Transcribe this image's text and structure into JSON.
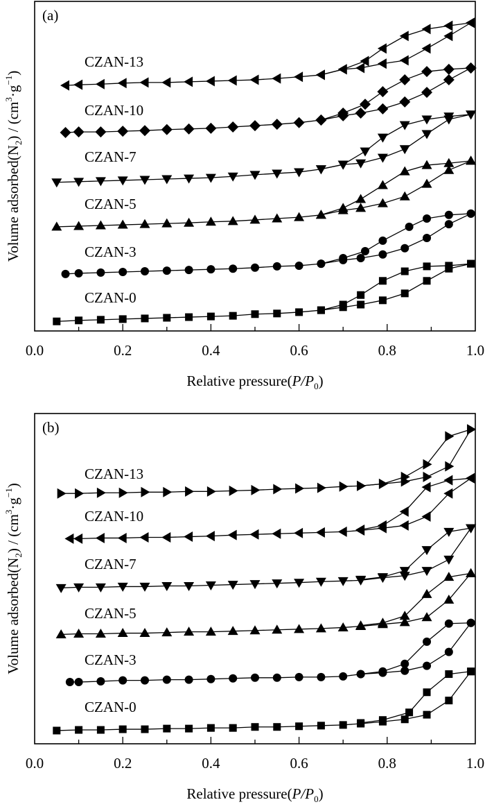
{
  "chart_data": [
    {
      "type": "line",
      "title": "(a)",
      "xlabel": "Relative pressure(P/P0)",
      "xlabel_parts": {
        "prefix": "Relative pressure(",
        "italic": "P/P",
        "sub": "0",
        "suffix": ")"
      },
      "ylabel": "Volume adsorbed(N2) / (cm3·g−1)",
      "ylabel_parts": {
        "a": "Volume adsorbed(N",
        "sub": "2",
        "b": ") / (cm",
        "sup1": "3",
        "c": "·g",
        "sup2": "−1",
        "d": ")"
      },
      "xlim": [
        0,
        1.0
      ],
      "ylim": [
        0,
        100
      ],
      "x_ticks": [
        "0.0",
        "0.2",
        "0.4",
        "0.6",
        "0.8",
        "1.0"
      ],
      "grid": false,
      "y_ticks_shown": false,
      "series": [
        {
          "name": "CZAN-0",
          "marker": "square",
          "adsorption": {
            "x": [
              0.05,
              0.1,
              0.15,
              0.2,
              0.25,
              0.3,
              0.35,
              0.4,
              0.45,
              0.5,
              0.55,
              0.6,
              0.65,
              0.7,
              0.74,
              0.79,
              0.84,
              0.89,
              0.94,
              0.99
            ],
            "y": [
              2.9,
              3.2,
              3.4,
              3.6,
              3.8,
              4.0,
              4.2,
              4.4,
              4.6,
              5.1,
              5.3,
              5.7,
              6.3,
              7.2,
              8.0,
              9.3,
              11.4,
              15.2,
              18.9,
              20.4
            ]
          },
          "desorption": {
            "x": [
              0.99,
              0.94,
              0.89,
              0.84,
              0.79,
              0.74,
              0.7,
              0.65
            ],
            "y": [
              20.4,
              19.8,
              19.6,
              18.1,
              15.2,
              10.9,
              8.0,
              6.3
            ]
          }
        },
        {
          "name": "CZAN-3",
          "marker": "circle",
          "adsorption": {
            "x": [
              0.07,
              0.1,
              0.15,
              0.2,
              0.25,
              0.3,
              0.35,
              0.4,
              0.45,
              0.5,
              0.55,
              0.6,
              0.65,
              0.7,
              0.74,
              0.79,
              0.84,
              0.89,
              0.94,
              0.99
            ],
            "y": [
              17.3,
              17.5,
              17.7,
              17.9,
              18.1,
              18.3,
              18.5,
              18.7,
              18.9,
              19.2,
              19.6,
              19.8,
              20.4,
              21.5,
              22.1,
              23.2,
              25.1,
              28.2,
              32.4,
              35.6
            ]
          },
          "desorption": {
            "x": [
              0.99,
              0.94,
              0.89,
              0.85,
              0.79,
              0.75,
              0.7,
              0.65
            ],
            "y": [
              35.6,
              35.2,
              34.1,
              31.6,
              27.4,
              24.2,
              22.1,
              20.4
            ]
          }
        },
        {
          "name": "CZAN-5",
          "marker": "triangle-up",
          "adsorption": {
            "x": [
              0.05,
              0.1,
              0.15,
              0.2,
              0.25,
              0.3,
              0.35,
              0.4,
              0.45,
              0.5,
              0.55,
              0.6,
              0.65,
              0.7,
              0.74,
              0.79,
              0.84,
              0.89,
              0.94,
              0.99
            ],
            "y": [
              31.6,
              31.8,
              32.0,
              32.2,
              32.4,
              32.6,
              32.8,
              33.1,
              33.3,
              33.7,
              34.1,
              34.5,
              35.2,
              36.6,
              37.3,
              38.7,
              40.8,
              44.6,
              48.8,
              51.6
            ]
          },
          "desorption": {
            "x": [
              0.99,
              0.94,
              0.89,
              0.84,
              0.79,
              0.74,
              0.7,
              0.65
            ],
            "y": [
              51.6,
              50.9,
              50.3,
              48.4,
              44.2,
              40.0,
              37.3,
              35.2
            ]
          }
        },
        {
          "name": "CZAN-7",
          "marker": "triangle-down",
          "adsorption": {
            "x": [
              0.05,
              0.1,
              0.15,
              0.2,
              0.25,
              0.3,
              0.35,
              0.4,
              0.45,
              0.5,
              0.55,
              0.6,
              0.65,
              0.7,
              0.74,
              0.79,
              0.84,
              0.89,
              0.94,
              0.99
            ],
            "y": [
              45.1,
              45.3,
              45.5,
              45.7,
              45.9,
              46.1,
              46.3,
              46.5,
              46.9,
              47.4,
              47.8,
              48.2,
              49.1,
              50.5,
              50.9,
              52.6,
              55.2,
              59.8,
              64.2,
              65.7
            ]
          },
          "desorption": {
            "x": [
              0.99,
              0.94,
              0.89,
              0.84,
              0.79,
              0.75,
              0.7,
              0.65
            ],
            "y": [
              65.7,
              65.1,
              64.2,
              62.5,
              58.7,
              54.5,
              50.5,
              49.1
            ]
          }
        },
        {
          "name": "CZAN-10",
          "marker": "diamond",
          "adsorption": {
            "x": [
              0.07,
              0.1,
              0.15,
              0.2,
              0.25,
              0.3,
              0.35,
              0.4,
              0.45,
              0.5,
              0.55,
              0.6,
              0.65,
              0.7,
              0.74,
              0.79,
              0.84,
              0.89,
              0.94,
              0.99
            ],
            "y": [
              60.2,
              60.4,
              60.4,
              60.6,
              60.8,
              61.1,
              61.3,
              61.5,
              61.9,
              62.3,
              62.7,
              63.2,
              64.0,
              65.3,
              66.1,
              67.4,
              69.5,
              72.4,
              76.2,
              79.8
            ]
          },
          "desorption": {
            "x": [
              0.99,
              0.94,
              0.89,
              0.84,
              0.79,
              0.75,
              0.7,
              0.65
            ],
            "y": [
              79.8,
              79.4,
              78.7,
              76.2,
              72.6,
              68.8,
              66.1,
              64.0
            ]
          }
        },
        {
          "name": "CZAN-13",
          "marker": "triangle-left",
          "adsorption": {
            "x": [
              0.07,
              0.1,
              0.15,
              0.2,
              0.25,
              0.3,
              0.35,
              0.4,
              0.45,
              0.5,
              0.55,
              0.6,
              0.65,
              0.7,
              0.74,
              0.79,
              0.84,
              0.89,
              0.94,
              0.99
            ],
            "y": [
              74.5,
              74.7,
              74.9,
              75.2,
              75.4,
              75.4,
              75.6,
              75.8,
              76.0,
              76.2,
              76.6,
              77.1,
              77.7,
              79.4,
              79.8,
              81.1,
              82.1,
              85.7,
              89.5,
              93.5
            ]
          },
          "desorption": {
            "x": [
              0.99,
              0.94,
              0.89,
              0.84,
              0.79,
              0.75,
              0.7,
              0.65
            ],
            "y": [
              93.5,
              92.6,
              91.6,
              89.5,
              85.7,
              81.9,
              79.4,
              77.7
            ]
          }
        }
      ]
    },
    {
      "type": "line",
      "title": "(b)",
      "xlabel": "Relative pressure(P/P0)",
      "xlabel_parts": {
        "prefix": "Relative pressure(",
        "italic": "P/P",
        "sub": "0",
        "suffix": ")"
      },
      "ylabel": "Volume adsorbed(N2) / (cm3·g−1)",
      "ylabel_parts": {
        "a": "Volume adsorbed(N",
        "sub": "2",
        "b": ") / (cm",
        "sup1": "3",
        "c": "·g",
        "sup2": "−1",
        "d": ")"
      },
      "xlim": [
        0,
        1.0
      ],
      "ylim": [
        0,
        100
      ],
      "x_ticks": [
        "0.0",
        "0.2",
        "0.4",
        "0.6",
        "0.8",
        "1.0"
      ],
      "grid": false,
      "y_ticks_shown": false,
      "series": [
        {
          "name": "CZAN-0",
          "marker": "square",
          "adsorption": {
            "x": [
              0.05,
              0.1,
              0.15,
              0.2,
              0.25,
              0.3,
              0.35,
              0.4,
              0.45,
              0.5,
              0.55,
              0.6,
              0.65,
              0.7,
              0.74,
              0.79,
              0.84,
              0.89,
              0.94,
              0.99
            ],
            "y": [
              4.0,
              4.2,
              4.2,
              4.4,
              4.4,
              4.6,
              4.6,
              4.8,
              4.8,
              5.1,
              5.1,
              5.3,
              5.5,
              5.7,
              6.1,
              6.7,
              7.4,
              8.8,
              13.1,
              21.9
            ]
          },
          "desorption": {
            "x": [
              0.99,
              0.94,
              0.89,
              0.85,
              0.79,
              0.74
            ],
            "y": [
              21.9,
              21.1,
              15.6,
              9.5,
              7.2,
              6.3
            ]
          }
        },
        {
          "name": "CZAN-3",
          "marker": "circle",
          "adsorption": {
            "x": [
              0.08,
              0.1,
              0.15,
              0.2,
              0.25,
              0.3,
              0.35,
              0.4,
              0.45,
              0.5,
              0.55,
              0.6,
              0.65,
              0.7,
              0.74,
              0.79,
              0.84,
              0.89,
              0.94,
              0.99
            ],
            "y": [
              18.7,
              18.7,
              18.9,
              19.2,
              19.2,
              19.4,
              19.4,
              19.6,
              19.8,
              20.0,
              20.0,
              20.2,
              20.2,
              20.4,
              21.1,
              21.5,
              22.1,
              23.6,
              27.8,
              36.6
            ]
          },
          "desorption": {
            "x": [
              0.99,
              0.94,
              0.89,
              0.84,
              0.79,
              0.74
            ],
            "y": [
              36.6,
              36.4,
              30.9,
              24.2,
              21.9,
              21.1
            ]
          }
        },
        {
          "name": "CZAN-5",
          "marker": "triangle-up",
          "adsorption": {
            "x": [
              0.06,
              0.1,
              0.15,
              0.2,
              0.25,
              0.3,
              0.35,
              0.4,
              0.45,
              0.5,
              0.55,
              0.6,
              0.65,
              0.7,
              0.74,
              0.79,
              0.84,
              0.89,
              0.94,
              0.99
            ],
            "y": [
              33.1,
              33.3,
              33.3,
              33.5,
              33.5,
              33.7,
              33.9,
              33.9,
              34.1,
              34.3,
              34.5,
              34.7,
              34.9,
              35.2,
              35.6,
              36.2,
              36.8,
              38.3,
              43.6,
              51.6
            ]
          },
          "desorption": {
            "x": [
              0.99,
              0.94,
              0.89,
              0.84,
              0.79,
              0.74
            ],
            "y": [
              51.6,
              50.5,
              45.3,
              38.7,
              36.6,
              35.8
            ]
          }
        },
        {
          "name": "CZAN-7",
          "marker": "triangle-down",
          "adsorption": {
            "x": [
              0.06,
              0.1,
              0.15,
              0.2,
              0.25,
              0.3,
              0.35,
              0.4,
              0.45,
              0.5,
              0.55,
              0.6,
              0.65,
              0.7,
              0.74,
              0.79,
              0.84,
              0.89,
              0.94,
              0.99
            ],
            "y": [
              47.2,
              47.4,
              47.4,
              47.6,
              47.6,
              47.8,
              47.8,
              48.0,
              48.2,
              48.4,
              48.6,
              48.8,
              49.1,
              49.3,
              49.5,
              50.3,
              50.9,
              52.4,
              55.8,
              65.3
            ]
          },
          "desorption": {
            "x": [
              0.99,
              0.94,
              0.89,
              0.84,
              0.79,
              0.74
            ],
            "y": [
              65.3,
              64.2,
              58.7,
              52.4,
              50.5,
              49.7
            ]
          }
        },
        {
          "name": "CZAN-10",
          "marker": "triangle-left",
          "adsorption": {
            "x": [
              0.08,
              0.1,
              0.15,
              0.2,
              0.25,
              0.3,
              0.35,
              0.4,
              0.45,
              0.5,
              0.55,
              0.6,
              0.65,
              0.7,
              0.74,
              0.79,
              0.84,
              0.89,
              0.94,
              0.99
            ],
            "y": [
              62.1,
              62.1,
              62.3,
              62.3,
              62.5,
              62.5,
              62.7,
              62.9,
              63.2,
              63.4,
              63.6,
              63.8,
              64.0,
              64.2,
              64.6,
              65.3,
              66.1,
              68.8,
              75.8,
              80.4
            ]
          },
          "desorption": {
            "x": [
              0.99,
              0.94,
              0.89,
              0.84,
              0.79,
              0.74
            ],
            "y": [
              80.4,
              79.8,
              77.7,
              70.3,
              66.1,
              64.8
            ]
          }
        },
        {
          "name": "CZAN-13",
          "marker": "triangle-right",
          "adsorption": {
            "x": [
              0.06,
              0.1,
              0.15,
              0.2,
              0.25,
              0.3,
              0.35,
              0.4,
              0.45,
              0.5,
              0.55,
              0.6,
              0.65,
              0.7,
              0.74,
              0.79,
              0.84,
              0.89,
              0.94,
              0.99
            ],
            "y": [
              75.8,
              75.8,
              76.0,
              76.0,
              76.2,
              76.2,
              76.4,
              76.4,
              76.6,
              76.8,
              77.1,
              77.3,
              77.5,
              77.9,
              78.1,
              78.7,
              79.4,
              80.8,
              84.0,
              95.2
            ]
          },
          "desorption": {
            "x": [
              0.99,
              0.94,
              0.89,
              0.84,
              0.79,
              0.74
            ],
            "y": [
              95.2,
              93.1,
              84.6,
              80.8,
              78.7,
              78.1
            ]
          }
        }
      ]
    }
  ],
  "colors": {
    "marker": "#000000",
    "line": "#000000",
    "frame": "#000000",
    "background": "#ffffff"
  }
}
